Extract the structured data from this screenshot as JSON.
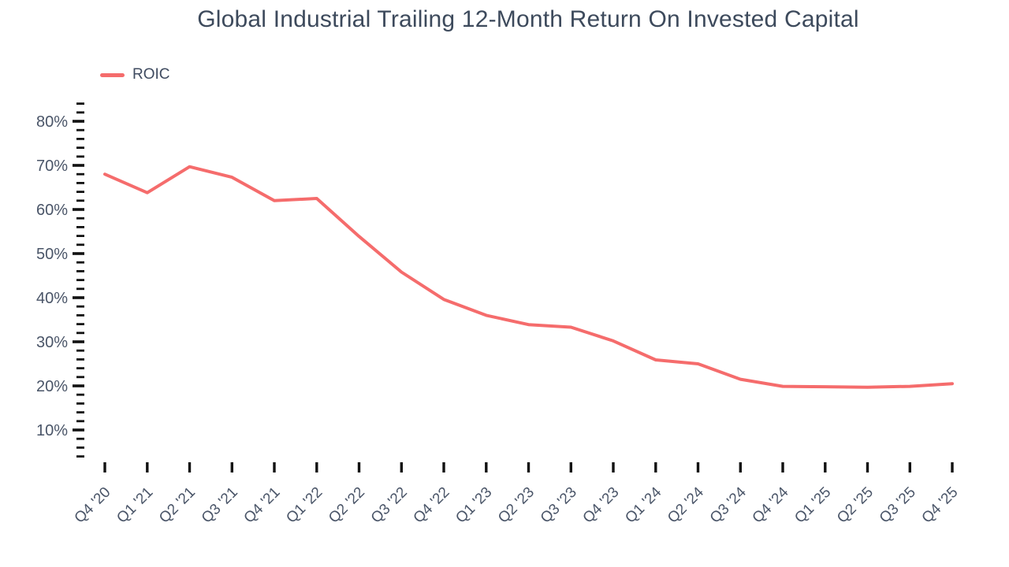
{
  "chart_data": {
    "type": "line",
    "title": "Global Industrial Trailing 12-Month Return On Invested Capital",
    "categories": [
      "Q4 '20",
      "Q1 '21",
      "Q2 '21",
      "Q3 '21",
      "Q4 '21",
      "Q1 '22",
      "Q2 '22",
      "Q3 '22",
      "Q4 '22",
      "Q1 '23",
      "Q2 '23",
      "Q3 '23",
      "Q4 '23",
      "Q1 '24",
      "Q2 '24",
      "Q3 '24",
      "Q4 '24",
      "Q1 '25",
      "Q2 '25",
      "Q3 '25",
      "Q4 '25"
    ],
    "series": [
      {
        "name": "ROIC",
        "color": "#f56c6c",
        "values": [
          68.0,
          63.8,
          69.7,
          67.3,
          62.0,
          62.5,
          53.9,
          45.8,
          39.6,
          36.0,
          33.9,
          33.3,
          30.2,
          25.9,
          25.0,
          21.5,
          19.9,
          19.8,
          19.7,
          19.9,
          20.5
        ]
      }
    ],
    "y_axis": {
      "unit": "%",
      "range": [
        4,
        84
      ],
      "minor_tick_step": 2,
      "label_values": [
        10,
        20,
        30,
        40,
        50,
        60,
        70,
        80
      ],
      "tick_labels": [
        "10%",
        "20%",
        "30%",
        "40%",
        "50%",
        "60%",
        "70%",
        "80%"
      ]
    },
    "x_axis": {
      "label_rotation": -45,
      "tick_count": 21
    },
    "grid": false,
    "legend_position": "top-left"
  },
  "legend": {
    "items": [
      {
        "label": "ROIC",
        "color": "#f56c6c"
      }
    ]
  },
  "colors": {
    "line": "#f56c6c",
    "tick": "#111111",
    "axis_label": "#4a5568",
    "title": "#3d4a5c",
    "background": "#ffffff"
  }
}
